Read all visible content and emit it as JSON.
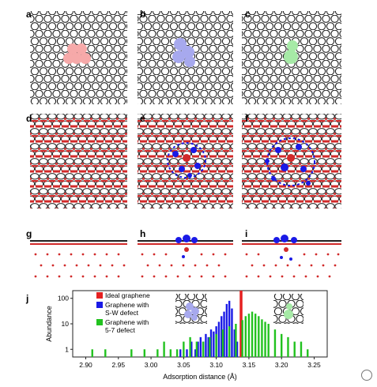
{
  "panel_letters": [
    "a",
    "b",
    "c",
    "d",
    "e",
    "f",
    "g",
    "h",
    "i",
    "j"
  ],
  "colors": {
    "red": "#e52020",
    "blue": "#1a1ae6",
    "green": "#22c21f",
    "sw_highlight": "#a7a9ee",
    "ring57_highlight": "#a6eaa6",
    "a_highlight": "#f6a9a9"
  },
  "chart_data": {
    "type": "bar",
    "xlabel": "Adsorption distance (Å)",
    "ylabel": "Abundance",
    "xlim": [
      2.88,
      3.27
    ],
    "ylim": [
      0.5,
      200
    ],
    "y_log": true,
    "x_ticks": [
      "2.90",
      "2.95",
      "3.00",
      "3.05",
      "3.10",
      "3.15",
      "3.20",
      "3.25"
    ],
    "y_ticks": [
      "1",
      "10",
      "100"
    ],
    "legend_placement": "top-left",
    "legend": [
      {
        "label": "Ideal graphene",
        "color": "#e52020"
      },
      {
        "label": "Graphene with S-W defect",
        "color": "#1a1ae6"
      },
      {
        "label": "Graphene with 5-7 defect",
        "color": "#22c21f"
      }
    ],
    "series": [
      {
        "name": "Ideal graphene",
        "color": "#e52020",
        "x": [
          3.138
        ],
        "values": [
          200
        ]
      },
      {
        "name": "Graphene with S-W defect",
        "color": "#1a1ae6",
        "x": [
          3.045,
          3.055,
          3.062,
          3.068,
          3.072,
          3.076,
          3.08,
          3.084,
          3.088,
          3.092,
          3.096,
          3.1,
          3.104,
          3.108,
          3.112,
          3.116,
          3.12,
          3.124,
          3.128,
          3.132
        ],
        "values": [
          1,
          1,
          2,
          1,
          2,
          3,
          2,
          4,
          3,
          6,
          5,
          8,
          12,
          20,
          30,
          60,
          80,
          40,
          6,
          2
        ]
      },
      {
        "name": "Graphene with 5-7 defect",
        "color": "#22c21f",
        "x": [
          2.91,
          2.93,
          2.97,
          2.99,
          3.01,
          3.02,
          3.03,
          3.04,
          3.05,
          3.06,
          3.07,
          3.08,
          3.09,
          3.1,
          3.11,
          3.12,
          3.13,
          3.14,
          3.145,
          3.15,
          3.155,
          3.16,
          3.165,
          3.17,
          3.175,
          3.18,
          3.19,
          3.2,
          3.21,
          3.22,
          3.23,
          3.24
        ],
        "values": [
          1,
          1,
          1,
          1,
          1,
          2,
          1,
          1,
          2,
          3,
          2,
          2,
          3,
          4,
          6,
          8,
          10,
          14,
          20,
          25,
          30,
          25,
          20,
          15,
          12,
          10,
          6,
          4,
          3,
          2,
          2,
          1
        ]
      }
    ]
  }
}
